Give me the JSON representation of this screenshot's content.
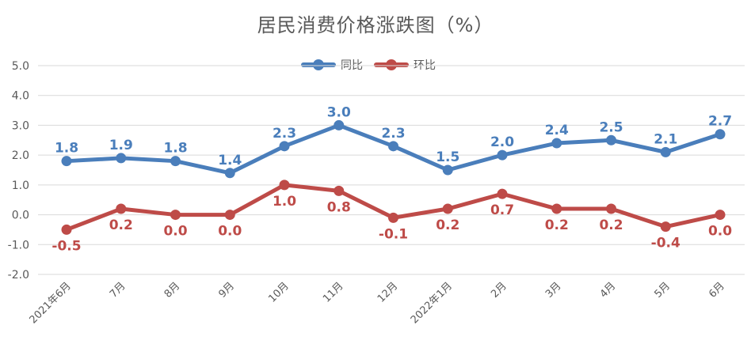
{
  "chart_data": {
    "type": "line",
    "title": "居民消费价格涨跌图（%）",
    "categories": [
      "2021年6月",
      "7月",
      "8月",
      "9月",
      "10月",
      "11月",
      "12月",
      "2022年1月",
      "2月",
      "3月",
      "4月",
      "5月",
      "6月"
    ],
    "series": [
      {
        "name": "同比",
        "color": "#4a7ebb",
        "values": [
          1.8,
          1.9,
          1.8,
          1.4,
          2.3,
          3.0,
          2.3,
          1.5,
          2.0,
          2.4,
          2.5,
          2.1,
          2.7
        ]
      },
      {
        "name": "环比",
        "color": "#be4b48",
        "values": [
          -0.5,
          0.2,
          0.0,
          0.0,
          1.0,
          0.8,
          -0.1,
          0.2,
          0.7,
          0.2,
          0.2,
          -0.4,
          0.0
        ]
      }
    ],
    "yticks": [
      "5.0",
      "4.0",
      "3.0",
      "2.0",
      "1.0",
      "0.0",
      "-1.0",
      "-2.0"
    ],
    "ylim": [
      -2.0,
      5.0
    ],
    "grid": true,
    "legend": "top-center"
  }
}
